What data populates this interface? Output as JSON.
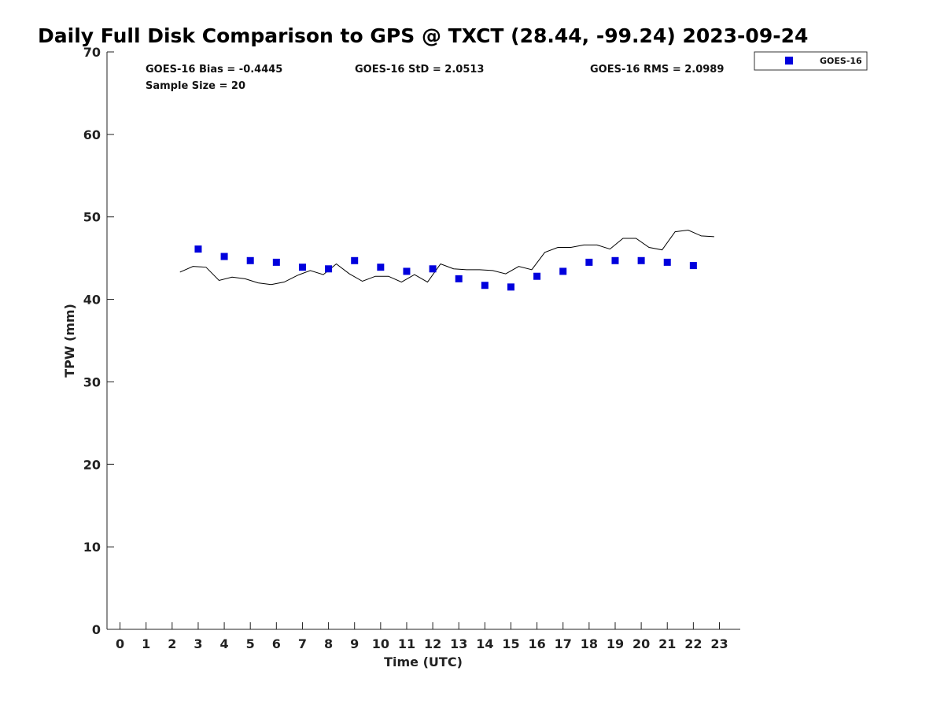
{
  "chart_data": {
    "type": "scatter",
    "title": "Daily Full Disk Comparison to GPS @ TXCT (28.44, -99.24) 2023-09-24",
    "xlabel": "Time (UTC)",
    "ylabel": "TPW (mm)",
    "xlim": [
      -0.5,
      23.8
    ],
    "ylim": [
      0,
      70
    ],
    "xticks": [
      0,
      1,
      2,
      3,
      4,
      5,
      6,
      7,
      8,
      9,
      10,
      11,
      12,
      13,
      14,
      15,
      16,
      17,
      18,
      19,
      20,
      21,
      22,
      23
    ],
    "yticks": [
      0,
      10,
      20,
      30,
      40,
      50,
      60,
      70
    ],
    "grid": false,
    "legend_position": "top-right outside",
    "stats": {
      "bias": "GOES-16 Bias = -0.4445",
      "std": "GOES-16 StD = 2.0513",
      "rms": "GOES-16 RMS = 2.0989",
      "sample_size": "Sample Size = 20"
    },
    "colors": {
      "goes": "#0000dd",
      "gps": "#000000"
    },
    "series": [
      {
        "name": "GOES-16",
        "type": "scatter",
        "marker": "square",
        "x": [
          3,
          4,
          5,
          6,
          7,
          8,
          9,
          10,
          11,
          12,
          13,
          14,
          15,
          16,
          17,
          18,
          19,
          20,
          21,
          22
        ],
        "y": [
          46.1,
          45.2,
          44.7,
          44.5,
          43.9,
          43.7,
          44.7,
          43.9,
          43.4,
          43.7,
          42.5,
          41.7,
          41.5,
          42.8,
          43.4,
          44.5,
          44.7,
          44.7,
          44.5,
          44.1
        ]
      },
      {
        "type": "line",
        "x": [
          2.3,
          2.8,
          3.3,
          3.8,
          4.3,
          4.8,
          5.3,
          5.8,
          6.3,
          6.8,
          7.3,
          7.8,
          8.3,
          8.8,
          9.3,
          9.8,
          10.3,
          10.8,
          11.3,
          11.8,
          12.3,
          12.8,
          13.3,
          13.8,
          14.3,
          14.8,
          15.3,
          15.8,
          16.3,
          16.8,
          17.3,
          17.8,
          18.3,
          18.8,
          19.3,
          19.8,
          20.3,
          20.8,
          21.3,
          21.8,
          22.3,
          22.8
        ],
        "y": [
          43.3,
          44.0,
          43.9,
          42.3,
          42.7,
          42.5,
          42.0,
          41.8,
          42.1,
          42.9,
          43.5,
          43.0,
          44.3,
          43.1,
          42.2,
          42.8,
          42.8,
          42.1,
          43.0,
          42.1,
          44.3,
          43.7,
          43.6,
          43.6,
          43.5,
          43.1,
          44.0,
          43.6,
          45.7,
          46.3,
          46.3,
          46.6,
          46.6,
          46.1,
          47.4,
          47.4,
          46.3,
          46.0,
          48.2,
          48.4,
          47.7,
          47.6
        ]
      }
    ]
  }
}
